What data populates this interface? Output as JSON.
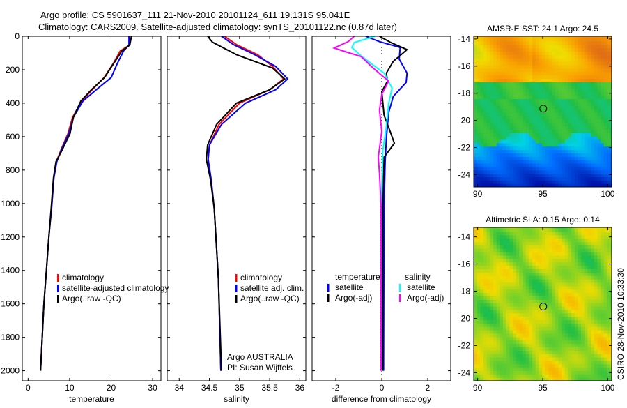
{
  "title_line1": "Argo profile: CS 5901637_111 21-Nov-2010 20101124_611 19.131S 95.041E",
  "title_line2": "Climatology: CARS2009. Satellite-adjusted climatology: synTS_20101122.nc (0.87d later)",
  "footer_stamp": "CSIRO 28-Nov-2010 10:33:30",
  "colors": {
    "climatology": "#ff0000",
    "satellite": "#0000ff",
    "argo": "#000000",
    "sal_satellite": "#00ffff",
    "sal_argo": "#ff00ff"
  },
  "chart_data": [
    {
      "type": "line",
      "xlabel": "temperature",
      "ylabel": "",
      "xlim": [
        -1.4,
        32
      ],
      "ylim": [
        0,
        2060
      ],
      "y_reversed": true,
      "xticks": [
        "0",
        "10",
        "20",
        "30"
      ],
      "xtick_values": [
        0,
        10,
        20,
        30
      ],
      "yticks": [
        "0",
        "200",
        "400",
        "600",
        "800",
        "1000",
        "1200",
        "1400",
        "1600",
        "1800",
        "2000"
      ],
      "ytick_values": [
        0,
        200,
        400,
        600,
        800,
        1000,
        1200,
        1400,
        1600,
        1800,
        2000
      ],
      "legend": [
        "climatology",
        "satellite-adjusted climatology",
        "Argo(..raw -QC)"
      ],
      "series": [
        {
          "name": "climatology",
          "color": "#ff0000",
          "depth": [
            0,
            53,
            88,
            163,
            247,
            318,
            388,
            485,
            582,
            680,
            750,
            848,
            1015,
            1200,
            1400,
            1600,
            1800,
            2000
          ],
          "values": [
            24.9,
            24.4,
            22.2,
            20.5,
            18.3,
            15.5,
            12.9,
            10.7,
            9.6,
            7.9,
            6.8,
            6.2,
            5.7,
            5.0,
            4.4,
            3.8,
            3.4,
            3.0
          ]
        },
        {
          "name": "satellite-adjusted climatology",
          "color": "#0000ff",
          "depth": [
            0,
            53,
            88,
            163,
            247,
            318,
            388,
            485,
            582,
            680,
            750,
            848,
            1015,
            1200,
            1400,
            1600,
            1800,
            2000
          ],
          "values": [
            24.3,
            24.3,
            23.0,
            21.5,
            20.0,
            16.5,
            13.2,
            10.9,
            9.8,
            8.0,
            6.9,
            6.2,
            5.7,
            5.0,
            4.4,
            3.8,
            3.4,
            3.0
          ]
        },
        {
          "name": "Argo(..raw -QC)",
          "color": "#000000",
          "depth": [
            0,
            53,
            88,
            163,
            247,
            318,
            388,
            485,
            582,
            680,
            750,
            848,
            1015,
            1200,
            1400,
            1600,
            1800,
            2000
          ],
          "values": [
            24.9,
            24.5,
            22.6,
            20.6,
            18.4,
            15.3,
            12.7,
            10.9,
            10.1,
            8.2,
            6.7,
            6.1,
            5.6,
            5.0,
            4.4,
            3.8,
            3.4,
            3.0
          ]
        }
      ]
    },
    {
      "type": "line",
      "xlabel": "salinity",
      "xlim": [
        33.8,
        36.1
      ],
      "ylim": [
        0,
        2060
      ],
      "y_reversed": true,
      "xticks": [
        "34",
        "34.5",
        "35",
        "35.5",
        "36"
      ],
      "xtick_values": [
        34,
        34.5,
        35,
        35.5,
        36
      ],
      "legend": [
        "climatology",
        "satellite adj. clim.",
        "Argo(..raw -QC)"
      ],
      "annotations": [
        "Argo AUSTRALIA",
        "PI: Susan Wijffels"
      ],
      "series": [
        {
          "name": "climatology",
          "color": "#ff0000",
          "depth": [
            0,
            50,
            110,
            180,
            255,
            320,
            400,
            527,
            650,
            736,
            860,
            1030,
            1450,
            2000
          ],
          "values": [
            34.75,
            34.95,
            35.3,
            35.55,
            35.73,
            35.5,
            35.0,
            34.66,
            34.5,
            34.48,
            34.53,
            34.58,
            34.65,
            34.69
          ]
        },
        {
          "name": "satellite adj. clim.",
          "color": "#0000ff",
          "depth": [
            0,
            50,
            110,
            180,
            255,
            320,
            400,
            527,
            650,
            736,
            860,
            1030,
            1450,
            2000
          ],
          "values": [
            34.7,
            34.9,
            35.25,
            35.6,
            35.8,
            35.6,
            35.1,
            34.7,
            34.5,
            34.48,
            34.53,
            34.58,
            34.65,
            34.69
          ]
        },
        {
          "name": "Argo(..raw -QC)",
          "color": "#000000",
          "depth": [
            0,
            35,
            110,
            190,
            255,
            320,
            400,
            527,
            650,
            736,
            860,
            1030,
            1450,
            2000
          ],
          "values": [
            34.47,
            34.55,
            34.95,
            35.55,
            35.75,
            35.5,
            34.95,
            34.62,
            34.47,
            34.45,
            34.52,
            34.58,
            34.65,
            34.7
          ]
        }
      ]
    },
    {
      "type": "line",
      "xlabel": "difference from climatology",
      "xlim": [
        -3.03,
        3.0
      ],
      "ylim": [
        0,
        2060
      ],
      "y_reversed": true,
      "xticks": [
        "-2",
        "0",
        "2"
      ],
      "xtick_values": [
        -2,
        0,
        2
      ],
      "legend_temperature_title": "temperature",
      "legend_salinity_title": "salinity",
      "legend": [
        "satellite",
        "Argo(-adj)",
        "satellite",
        "Argo(-adj)"
      ],
      "series": [
        {
          "name": "temperature satellite",
          "color": "#0000ff",
          "depth": [
            0,
            32,
            67,
            137,
            220,
            276,
            360,
            456,
            611,
            750,
            1016,
            2000
          ],
          "values": [
            -0.7,
            -0.1,
            0.8,
            0.76,
            1.1,
            1.06,
            0.5,
            0.3,
            0.2,
            0.15,
            0.1,
            0.08
          ]
        },
        {
          "name": "temperature Argo(-adj)",
          "color": "#000000",
          "depth": [
            0,
            38,
            80,
            150,
            220,
            268,
            331,
            472,
            582,
            640,
            723,
            1016,
            2000
          ],
          "values": [
            -0.1,
            0.4,
            1.1,
            0.5,
            0.2,
            0.25,
            0.0,
            0.1,
            0.4,
            0.55,
            0.1,
            0.05,
            0.05
          ]
        },
        {
          "name": "salinity satellite",
          "color": "#00ffff",
          "depth": [
            0,
            38,
            67,
            117,
            180,
            220,
            310,
            402,
            540,
            680,
            1016,
            2000
          ],
          "values": [
            -0.3,
            -1.2,
            -1.3,
            -0.9,
            -0.3,
            0.1,
            0.45,
            0.3,
            0.2,
            0.05,
            -0.02,
            -0.02
          ]
        },
        {
          "name": "salinity Argo(-adj)",
          "color": "#ff00ff",
          "depth": [
            0,
            32,
            70,
            96,
            121,
            180,
            234,
            268,
            347,
            443,
            569,
            723,
            820,
            1016,
            2000
          ],
          "values": [
            -1.2,
            -1.46,
            -2.07,
            -1.5,
            -0.9,
            -0.45,
            0.0,
            0.3,
            0.0,
            -0.1,
            0.0,
            -0.15,
            -0.1,
            -0.03,
            -0.03
          ]
        }
      ]
    },
    {
      "type": "heatmap",
      "title": "AMSR-E SST: 24.1 Argo: 24.5",
      "xlim": [
        89.7,
        100.3
      ],
      "ylim": [
        -24.9,
        -13.8
      ],
      "xticks": [
        "90",
        "95",
        "100"
      ],
      "xtick_values": [
        90,
        95,
        100
      ],
      "yticks": [
        "-14",
        "-16",
        "-18",
        "-20",
        "-22",
        "-24"
      ],
      "ytick_values": [
        -14,
        -16,
        -18,
        -20,
        -22,
        -24
      ],
      "marker": {
        "lon": 95.041,
        "lat": -19.131
      }
    },
    {
      "type": "heatmap",
      "title": "Altimetric SLA: 0.15 Argo: 0.14",
      "xlim": [
        89.7,
        100.3
      ],
      "ylim": [
        -24.6,
        -13.3
      ],
      "xticks": [
        "90",
        "95",
        "100"
      ],
      "xtick_values": [
        90,
        95,
        100
      ],
      "yticks": [
        "-14",
        "-16",
        "-18",
        "-20",
        "-22",
        "-24"
      ],
      "ytick_values": [
        -14,
        -16,
        -18,
        -20,
        -22,
        -24
      ],
      "marker": {
        "lon": 95.041,
        "lat": -19.131
      }
    }
  ]
}
